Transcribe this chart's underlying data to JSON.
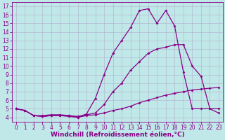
{
  "xlabel": "Windchill (Refroidissement éolien,°C)",
  "bg_color": "#c0e8e8",
  "line_color": "#880088",
  "grid_color": "#b0b0cc",
  "xlim": [
    -0.5,
    23.5
  ],
  "ylim": [
    3.5,
    17.5
  ],
  "xticks": [
    0,
    1,
    2,
    3,
    4,
    5,
    6,
    7,
    8,
    9,
    10,
    11,
    12,
    13,
    14,
    15,
    16,
    17,
    18,
    19,
    20,
    21,
    22,
    23
  ],
  "yticks": [
    4,
    5,
    6,
    7,
    8,
    9,
    10,
    11,
    12,
    13,
    14,
    15,
    16,
    17
  ],
  "line1_x": [
    0,
    1,
    2,
    3,
    4,
    5,
    6,
    7,
    8,
    9,
    10,
    11,
    12,
    13,
    14,
    15,
    16,
    17,
    18,
    19,
    20,
    21,
    22,
    23
  ],
  "line1_y": [
    5.0,
    4.8,
    4.2,
    4.2,
    4.3,
    4.3,
    4.2,
    4.0,
    4.4,
    6.2,
    9.0,
    11.5,
    13.0,
    14.5,
    16.5,
    16.7,
    15.0,
    16.5,
    14.7,
    9.3,
    5.0,
    5.0,
    5.0,
    5.0
  ],
  "line2_x": [
    0,
    1,
    2,
    3,
    4,
    5,
    6,
    7,
    8,
    9,
    10,
    11,
    12,
    13,
    14,
    15,
    16,
    17,
    18,
    19,
    20,
    21,
    22,
    23
  ],
  "line2_y": [
    5.0,
    4.8,
    4.2,
    4.1,
    4.2,
    4.2,
    4.2,
    4.1,
    4.3,
    4.5,
    5.5,
    7.0,
    8.0,
    9.5,
    10.5,
    11.5,
    12.0,
    12.2,
    12.5,
    12.5,
    10.0,
    8.8,
    5.0,
    4.5
  ],
  "line3_x": [
    0,
    1,
    2,
    3,
    4,
    5,
    6,
    7,
    8,
    9,
    10,
    11,
    12,
    13,
    14,
    15,
    16,
    17,
    18,
    19,
    20,
    21,
    22,
    23
  ],
  "line3_y": [
    5.0,
    4.8,
    4.2,
    4.1,
    4.2,
    4.2,
    4.1,
    4.0,
    4.2,
    4.3,
    4.5,
    4.8,
    5.0,
    5.3,
    5.7,
    6.0,
    6.3,
    6.6,
    6.8,
    7.0,
    7.2,
    7.3,
    7.4,
    7.5
  ],
  "marker": "D",
  "markersize": 2,
  "linewidth": 0.9,
  "tick_labelsize": 5.5,
  "xlabel_fontsize": 6.5
}
